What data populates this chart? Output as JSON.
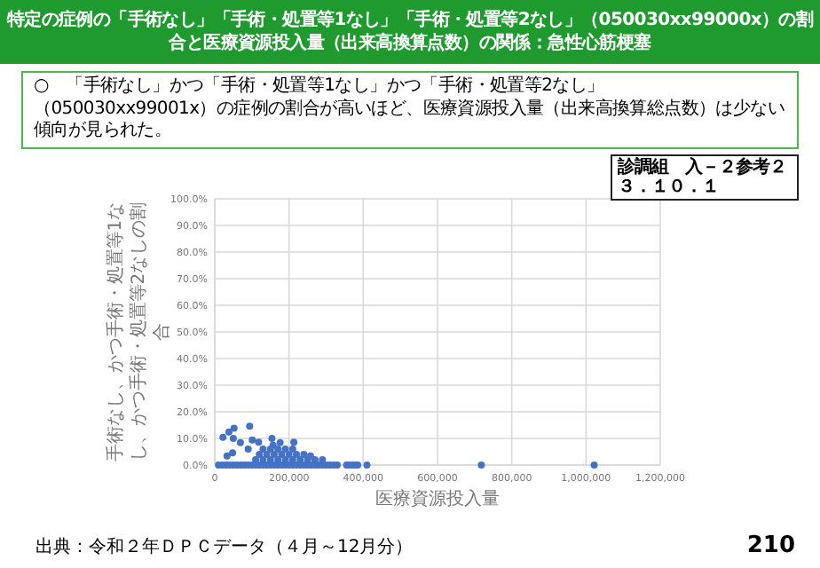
{
  "chart_data": {
    "type": "scatter",
    "title": "特定の症例の「手術なし」「手術・処置等1なし」「手術・処置等2なし」（050030xx99000x）の割合と医療資源投入量（出来高換算点数）の関係：急性心筋梗塞",
    "xlabel": "医療資源投入量",
    "ylabel": "手術なし、かつ手術・処置等1なし、かつ手術・処置等2なしの割合",
    "annotations": [
      "○　「手術なし」かつ「手術・処置等1なし」かつ「手術・処置等2なし」（050030xx99001x）の症例の割合が高いほど、医療資源投入量（出来高換算総点数）は少ない傾向が見られた。",
      "診調組　入－２参考２",
      "３．１０．１",
      "出典：令和２年ＤＰＣデータ（４月～12月分）",
      "210"
    ],
    "xlim": [
      0,
      1200000
    ],
    "xticks": [
      0,
      {
        "value": 200000,
        "label": "200,000"
      },
      {
        "value": 400000,
        "label": "400,000"
      },
      {
        "value": 600000,
        "label": "600,000"
      },
      {
        "value": 800000,
        "label": "800,000"
      },
      {
        "value": 1000000,
        "label": "1,000,000"
      },
      {
        "value": 1200000,
        "label": "1,200,000"
      }
    ],
    "ylim": [
      0,
      100
    ],
    "yticks": [
      {
        "value": 0,
        "label": "0.0%"
      },
      {
        "value": 10,
        "label": "10.0%"
      },
      {
        "value": 20,
        "label": "20.0%"
      },
      {
        "value": 30,
        "label": "30.0%"
      },
      {
        "value": 40,
        "label": "40.0%"
      },
      {
        "value": 50,
        "label": "50.0%"
      },
      {
        "value": 60,
        "label": "60.0%"
      },
      {
        "value": 70,
        "label": "70.0%"
      },
      {
        "value": 80,
        "label": "80.0%"
      },
      {
        "value": 90,
        "label": "90.0%"
      },
      {
        "value": 100,
        "label": "100.0%"
      }
    ],
    "grid": true,
    "marker": "circle",
    "series": [
      {
        "color": "#4472c4",
        "x": [
          10000,
          20000,
          30000,
          40000,
          50000,
          60000,
          70000,
          80000,
          90000,
          100000,
          110000,
          120000,
          130000,
          140000,
          150000,
          160000,
          170000,
          180000,
          190000,
          200000,
          210000,
          220000,
          230000,
          240000,
          250000,
          260000,
          270000,
          280000,
          290000,
          300000,
          310000,
          320000,
          330000,
          355000,
          362000,
          370000,
          378000,
          385000,
          410000,
          718000,
          1022000,
          22000,
          38000,
          52000,
          50000,
          33000,
          48000,
          69000,
          94000,
          101000,
          90000,
          118000,
          154000,
          176000,
          213000,
          157000,
          258000,
          110000,
          130000,
          150000,
          170000,
          190000,
          210000,
          230000,
          250000,
          270000,
          290000,
          120000,
          140000,
          160000,
          180000,
          200000,
          220000,
          240000,
          130000,
          150000,
          170000,
          190000,
          210000
        ],
        "values": [
          0,
          0,
          0,
          0,
          0,
          0,
          0,
          0,
          0,
          0,
          0,
          0,
          0,
          0,
          0,
          0,
          0,
          0,
          0,
          0,
          0,
          0,
          0,
          0,
          0,
          0,
          0,
          0,
          0,
          0,
          0,
          0,
          0,
          0,
          0,
          0,
          0,
          0,
          0,
          0,
          0,
          10.4,
          12.4,
          13.8,
          10,
          3.4,
          4.6,
          8.4,
          14.6,
          9.4,
          6,
          8.6,
          10,
          8.4,
          8.6,
          7.4,
          3.4,
          2,
          2,
          2,
          2,
          2,
          2,
          2,
          2,
          2,
          2,
          4,
          4,
          4,
          4,
          4,
          4,
          4,
          6,
          6,
          6,
          6,
          6
        ]
      }
    ]
  }
}
